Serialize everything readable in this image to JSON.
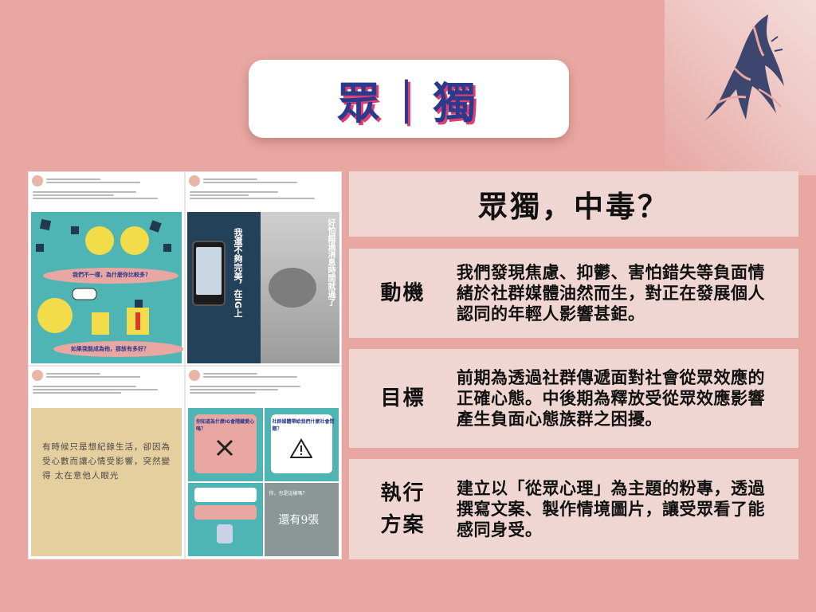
{
  "title": "眾｜獨",
  "header": "眾獨，中毒？",
  "rows": [
    {
      "label": "動機",
      "text": "我們發現焦慮、抑鬱、害怕錯失等負面情緒於社群媒體油然而生，對正在發展個人認同的年輕人影響甚鉅。"
    },
    {
      "label": "目標",
      "text": "前期為透過社群傳遞面對社會從眾效應的正確心態。中後期為釋放受從眾效應影響產生負面心態族群之困擾。"
    },
    {
      "label": "執行方案",
      "text": "建立以「從眾心理」為主題的粉專，透過撰寫文案、製作情境圖片，讓受眾看了能感同身受。"
    }
  ],
  "posts": {
    "p1_bubble_1": "我們不一樣，為什麼你比較多？",
    "p1_bubble_2": "如果我能成為他，那該有多好？",
    "p2_left": "我還不夠完美，在IG上",
    "p2_right": "好怕錯過消息時間就過了",
    "p3_hand": "有時候只是想紀錄生活，卻因為受心數而讓心情受影響，突然變得 太在意他人眼光",
    "p4_q1": "你知道為什麼IG會隱藏愛心嗎？",
    "p4_q2": "社群媒體帶給我們什麼社會問題？",
    "p4_q3": "你，也是這樣嗎？",
    "p4_q4": "還有9張"
  },
  "colors": {
    "background": "#e8a7a2",
    "panel": "#f0d6d3",
    "title_blue": "#2b3a8c",
    "title_shadow": "#e03e6e",
    "teal": "#4fb5b4"
  },
  "icons": [
    "mountain-logo-icon",
    "warning-icon",
    "cross-icon"
  ]
}
